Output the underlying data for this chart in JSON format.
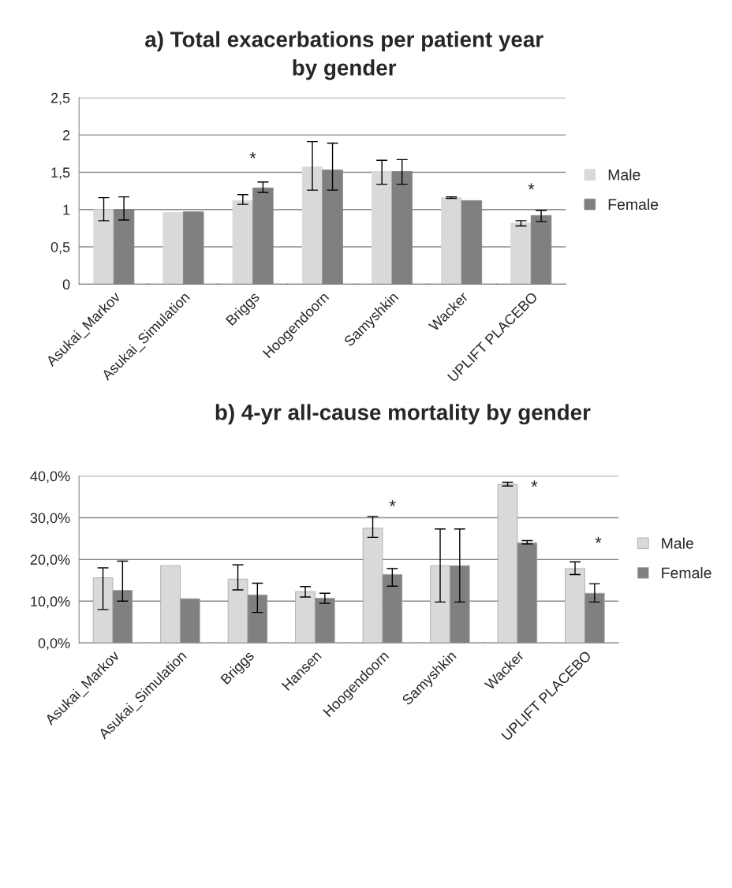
{
  "chart_data": [
    {
      "type": "bar",
      "title": "a) Total exacerbations per patient year\nby gender",
      "categories": [
        "Asukai_Markov",
        "Asukai_Simulation",
        "Briggs",
        "Hoogendoorn",
        "Samyshkin",
        "Wacker",
        "UPLIFT PLACEBO"
      ],
      "series": [
        {
          "name": "Male",
          "color": "#d9d9d9",
          "values": [
            1.0,
            0.96,
            1.12,
            1.57,
            1.51,
            1.16,
            0.82
          ],
          "errors": [
            [
              0.85,
              1.16
            ],
            null,
            [
              1.07,
              1.2
            ],
            [
              1.26,
              1.91
            ],
            [
              1.34,
              1.66
            ],
            [
              1.15,
              1.17
            ],
            [
              0.78,
              0.85
            ]
          ]
        },
        {
          "name": "Female",
          "color": "#808080",
          "values": [
            1.0,
            0.97,
            1.29,
            1.53,
            1.51,
            1.12,
            0.92
          ],
          "errors": [
            [
              0.86,
              1.17
            ],
            null,
            [
              1.23,
              1.37
            ],
            [
              1.26,
              1.89
            ],
            [
              1.34,
              1.67
            ],
            null,
            [
              0.84,
              0.99
            ]
          ]
        }
      ],
      "ylim": [
        0,
        2.5
      ],
      "yticks": [
        0,
        {
          "value": 0.5,
          "label": "0,5"
        },
        1,
        {
          "value": 1.5,
          "label": "1,5"
        },
        2,
        {
          "value": 2.5,
          "label": "2,5"
        }
      ],
      "grid": "y",
      "legend": "right",
      "annotations": [
        "*",
        "*"
      ]
    },
    {
      "type": "bar",
      "title": "b) 4-yr all-cause mortality by gender",
      "categories": [
        "Asukai_Markov",
        "Asukai_Simulation",
        "Briggs",
        "Hansen",
        "Hoogendoorn",
        "Samyshkin",
        "Wacker",
        "UPLIFT PLACEBO"
      ],
      "series": [
        {
          "name": "Male",
          "color": "#d9d9d9",
          "values": [
            15.6,
            18.5,
            15.3,
            12.3,
            27.5,
            18.5,
            38.0,
            17.8
          ],
          "errors": [
            [
              8.0,
              18.0
            ],
            null,
            [
              12.7,
              18.7
            ],
            [
              11.0,
              13.5
            ],
            [
              25.3,
              30.3
            ],
            [
              9.8,
              27.3
            ],
            [
              37.6,
              38.5
            ],
            [
              16.4,
              19.4
            ]
          ]
        },
        {
          "name": "Female",
          "color": "#808080",
          "values": [
            12.6,
            10.6,
            11.5,
            10.7,
            16.4,
            18.5,
            24.0,
            11.9
          ],
          "errors": [
            [
              10.0,
              19.6
            ],
            null,
            [
              7.3,
              14.3
            ],
            [
              9.5,
              11.9
            ],
            [
              13.6,
              17.8
            ],
            [
              9.8,
              27.3
            ],
            [
              23.7,
              24.5
            ],
            [
              9.8,
              14.2
            ]
          ]
        }
      ],
      "ylim": [
        0,
        40
      ],
      "yticks": [
        {
          "value": 0,
          "label": "0,0%"
        },
        {
          "value": 10,
          "label": "10,0%"
        },
        {
          "value": 20,
          "label": "20,0%"
        },
        {
          "value": 30,
          "label": "30,0%"
        },
        {
          "value": 40,
          "label": "40,0%"
        }
      ],
      "grid": "y",
      "legend": "right",
      "annotations": [
        "*",
        "*",
        "*"
      ]
    }
  ]
}
